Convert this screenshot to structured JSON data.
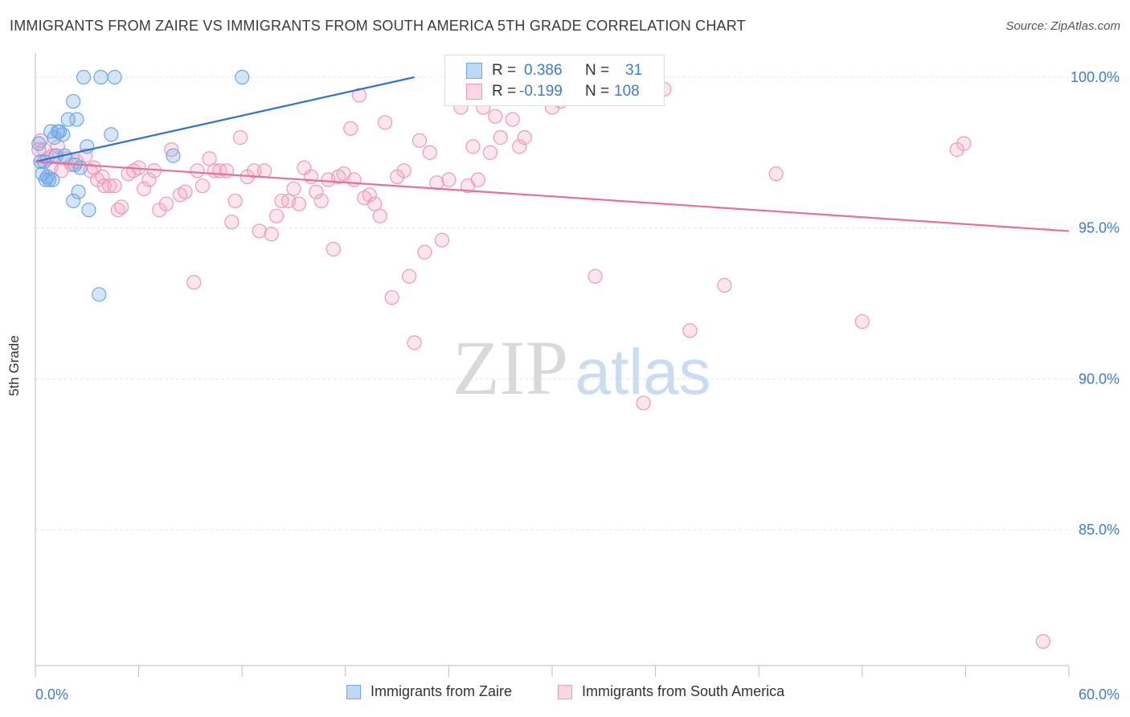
{
  "title": "IMMIGRANTS FROM ZAIRE VS IMMIGRANTS FROM SOUTH AMERICA 5TH GRADE CORRELATION CHART",
  "source": "Source: ZipAtlas.com",
  "watermark": {
    "zip": "ZIP",
    "atlas": "atlas"
  },
  "colors": {
    "blue": "#6fa8e8",
    "blue_line": "#2e72d2",
    "pink": "#f4a9c2",
    "pink_line": "#e87098",
    "tick_label": "#3f7dd1",
    "grid": "#e6e6e6"
  },
  "legend_stats": [
    {
      "r_label": "R =",
      "r_value": "0.386",
      "n_label": "N =",
      "n_value": "31",
      "color": "blue"
    },
    {
      "r_label": "R =",
      "r_value": "-0.199",
      "n_label": "N =",
      "n_value": "108",
      "color": "pink"
    }
  ],
  "legend_bottom": [
    {
      "label": "Immigrants from Zaire",
      "color": "blue"
    },
    {
      "label": "Immigrants from South America",
      "color": "pink"
    }
  ],
  "chart_data": {
    "type": "scatter",
    "title": "IMMIGRANTS FROM ZAIRE VS IMMIGRANTS FROM SOUTH AMERICA 5TH GRADE CORRELATION CHART",
    "xlabel": "",
    "ylabel": "5th Grade",
    "xlim": [
      0,
      60
    ],
    "ylim": [
      80.5,
      100.8
    ],
    "x_tick_labels": [
      "0.0%",
      "60.0%"
    ],
    "y_ticks": [
      100,
      95,
      90,
      85
    ],
    "y_tick_labels": [
      "100.0%",
      "95.0%",
      "90.0%",
      "85.0%"
    ],
    "grid": true,
    "legend_position": "bottom",
    "series": [
      {
        "name": "Immigrants from Zaire",
        "color": "blue",
        "trend": {
          "x": [
            0,
            22
          ],
          "y": [
            97.2,
            100.0
          ]
        },
        "points": [
          [
            0.2,
            97.8
          ],
          [
            0.3,
            97.2
          ],
          [
            0.4,
            96.8
          ],
          [
            0.6,
            96.6
          ],
          [
            0.7,
            96.7
          ],
          [
            0.8,
            96.6
          ],
          [
            0.9,
            98.2
          ],
          [
            1.0,
            96.6
          ],
          [
            1.1,
            98.0
          ],
          [
            1.2,
            97.4
          ],
          [
            1.4,
            98.2
          ],
          [
            1.6,
            98.1
          ],
          [
            1.7,
            97.4
          ],
          [
            1.9,
            98.6
          ],
          [
            2.2,
            99.2
          ],
          [
            2.4,
            98.6
          ],
          [
            2.3,
            97.1
          ],
          [
            2.5,
            96.2
          ],
          [
            2.6,
            97.0
          ],
          [
            3.0,
            97.7
          ],
          [
            3.1,
            95.6
          ],
          [
            2.2,
            95.9
          ],
          [
            3.7,
            92.8
          ],
          [
            2.8,
            100.0
          ],
          [
            3.8,
            100.0
          ],
          [
            4.6,
            100.0
          ],
          [
            4.4,
            98.1
          ],
          [
            8.0,
            97.4
          ],
          [
            12.0,
            100.0
          ],
          [
            1.3,
            98.2
          ],
          [
            0.5,
            97.2
          ]
        ]
      },
      {
        "name": "Immigrants from South America",
        "color": "pink",
        "trend": {
          "x": [
            0,
            60
          ],
          "y": [
            97.2,
            94.9
          ]
        },
        "points": [
          [
            0.3,
            97.9
          ],
          [
            0.5,
            97.6
          ],
          [
            0.7,
            97.3
          ],
          [
            0.9,
            97.0
          ],
          [
            1.0,
            97.4
          ],
          [
            1.3,
            97.7
          ],
          [
            1.5,
            96.9
          ],
          [
            1.8,
            97.3
          ],
          [
            2.1,
            97.1
          ],
          [
            2.4,
            97.2
          ],
          [
            2.9,
            97.4
          ],
          [
            3.2,
            96.9
          ],
          [
            3.4,
            97.0
          ],
          [
            3.6,
            96.6
          ],
          [
            3.9,
            96.7
          ],
          [
            4.0,
            96.4
          ],
          [
            4.3,
            96.4
          ],
          [
            4.6,
            96.4
          ],
          [
            4.8,
            95.6
          ],
          [
            5.0,
            95.7
          ],
          [
            5.4,
            96.8
          ],
          [
            5.7,
            96.9
          ],
          [
            6.0,
            97.0
          ],
          [
            6.3,
            96.3
          ],
          [
            6.6,
            96.6
          ],
          [
            6.9,
            96.9
          ],
          [
            7.2,
            95.6
          ],
          [
            7.6,
            95.8
          ],
          [
            7.9,
            97.6
          ],
          [
            8.4,
            96.1
          ],
          [
            8.7,
            96.2
          ],
          [
            9.2,
            93.2
          ],
          [
            9.4,
            96.9
          ],
          [
            9.7,
            96.4
          ],
          [
            10.1,
            97.3
          ],
          [
            10.4,
            96.9
          ],
          [
            10.7,
            96.9
          ],
          [
            11.1,
            96.9
          ],
          [
            11.4,
            95.2
          ],
          [
            11.6,
            95.9
          ],
          [
            11.9,
            98.0
          ],
          [
            12.3,
            96.7
          ],
          [
            12.7,
            96.9
          ],
          [
            13.0,
            94.9
          ],
          [
            13.3,
            96.9
          ],
          [
            13.7,
            94.8
          ],
          [
            14.0,
            95.4
          ],
          [
            14.3,
            95.9
          ],
          [
            14.7,
            95.9
          ],
          [
            15.0,
            96.3
          ],
          [
            15.3,
            95.8
          ],
          [
            15.6,
            97.0
          ],
          [
            16.0,
            96.7
          ],
          [
            16.3,
            96.2
          ],
          [
            16.6,
            95.9
          ],
          [
            17.0,
            96.6
          ],
          [
            17.3,
            94.3
          ],
          [
            17.6,
            96.7
          ],
          [
            17.9,
            96.8
          ],
          [
            18.3,
            98.3
          ],
          [
            18.5,
            96.6
          ],
          [
            18.8,
            99.4
          ],
          [
            19.1,
            96.0
          ],
          [
            19.4,
            96.1
          ],
          [
            19.7,
            95.8
          ],
          [
            20.0,
            95.4
          ],
          [
            20.3,
            98.5
          ],
          [
            20.7,
            92.7
          ],
          [
            21.0,
            96.7
          ],
          [
            21.4,
            96.9
          ],
          [
            21.7,
            93.4
          ],
          [
            22.0,
            91.2
          ],
          [
            22.3,
            97.9
          ],
          [
            22.6,
            94.2
          ],
          [
            22.9,
            97.5
          ],
          [
            23.3,
            96.5
          ],
          [
            23.6,
            94.6
          ],
          [
            24.0,
            96.6
          ],
          [
            24.4,
            99.9
          ],
          [
            24.7,
            99.0
          ],
          [
            25.1,
            96.4
          ],
          [
            25.4,
            97.7
          ],
          [
            25.7,
            96.6
          ],
          [
            26.0,
            99.0
          ],
          [
            26.4,
            97.5
          ],
          [
            26.7,
            98.7
          ],
          [
            27.0,
            98.0
          ],
          [
            27.4,
            99.4
          ],
          [
            27.7,
            98.6
          ],
          [
            28.1,
            97.7
          ],
          [
            28.4,
            98.0
          ],
          [
            29.0,
            99.6
          ],
          [
            30.0,
            99.0
          ],
          [
            30.5,
            99.2
          ],
          [
            31.0,
            99.4
          ],
          [
            32.5,
            93.4
          ],
          [
            33.0,
            99.8
          ],
          [
            34.2,
            99.7
          ],
          [
            35.3,
            89.2
          ],
          [
            36.5,
            99.6
          ],
          [
            38.0,
            91.6
          ],
          [
            40.0,
            93.1
          ],
          [
            43.0,
            96.8
          ],
          [
            48.0,
            91.9
          ],
          [
            53.5,
            97.6
          ],
          [
            53.9,
            97.8
          ],
          [
            58.5,
            81.3
          ],
          [
            0.2,
            97.6
          ]
        ]
      }
    ]
  }
}
